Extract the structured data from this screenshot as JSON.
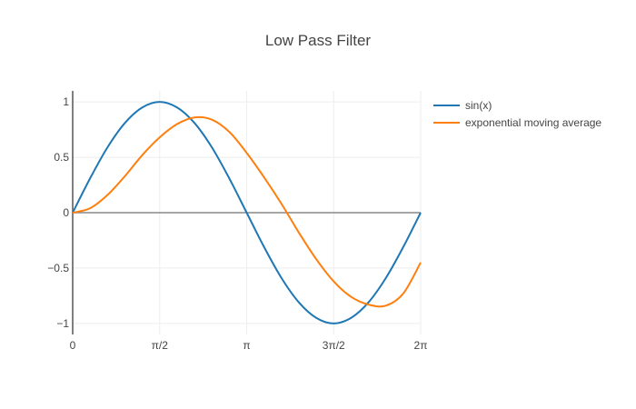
{
  "chart_data": {
    "type": "line",
    "title": "Low Pass Filter",
    "xlabel": "",
    "ylabel": "",
    "xlim": [
      0,
      6.2832
    ],
    "ylim": [
      -1.1,
      1.1
    ],
    "grid": true,
    "legend_position": "top-right",
    "x_ticks": [
      {
        "value": 0,
        "label": "0"
      },
      {
        "value": 1.5708,
        "label": "π/2"
      },
      {
        "value": 3.1416,
        "label": "π"
      },
      {
        "value": 4.7124,
        "label": "3π/2"
      },
      {
        "value": 6.2832,
        "label": "2π"
      }
    ],
    "y_ticks": [
      {
        "value": 1,
        "label": "1"
      },
      {
        "value": 0.5,
        "label": "0.5"
      },
      {
        "value": 0,
        "label": "0"
      },
      {
        "value": -0.5,
        "label": "−0.5"
      },
      {
        "value": -1,
        "label": "−1"
      }
    ],
    "x": [
      0,
      0.3142,
      0.6283,
      0.9425,
      1.2566,
      1.5708,
      1.885,
      2.1991,
      2.5133,
      2.8274,
      3.1416,
      3.4558,
      3.7699,
      4.0841,
      4.3982,
      4.7124,
      5.0265,
      5.3407,
      5.6549,
      5.969,
      6.2832
    ],
    "series": [
      {
        "name": "sin(x)",
        "color": "#1f77b4",
        "values": [
          0,
          0.31,
          0.59,
          0.81,
          0.95,
          1.0,
          0.95,
          0.81,
          0.59,
          0.31,
          0,
          -0.31,
          -0.59,
          -0.81,
          -0.95,
          -1.0,
          -0.95,
          -0.81,
          -0.59,
          -0.31,
          0
        ]
      },
      {
        "name": "exponential moving average",
        "color": "#ff7f0e",
        "values": [
          0,
          0.04,
          0.16,
          0.33,
          0.52,
          0.68,
          0.8,
          0.86,
          0.84,
          0.73,
          0.54,
          0.32,
          0.08,
          -0.18,
          -0.42,
          -0.62,
          -0.76,
          -0.83,
          -0.84,
          -0.73,
          -0.45
        ]
      }
    ]
  }
}
